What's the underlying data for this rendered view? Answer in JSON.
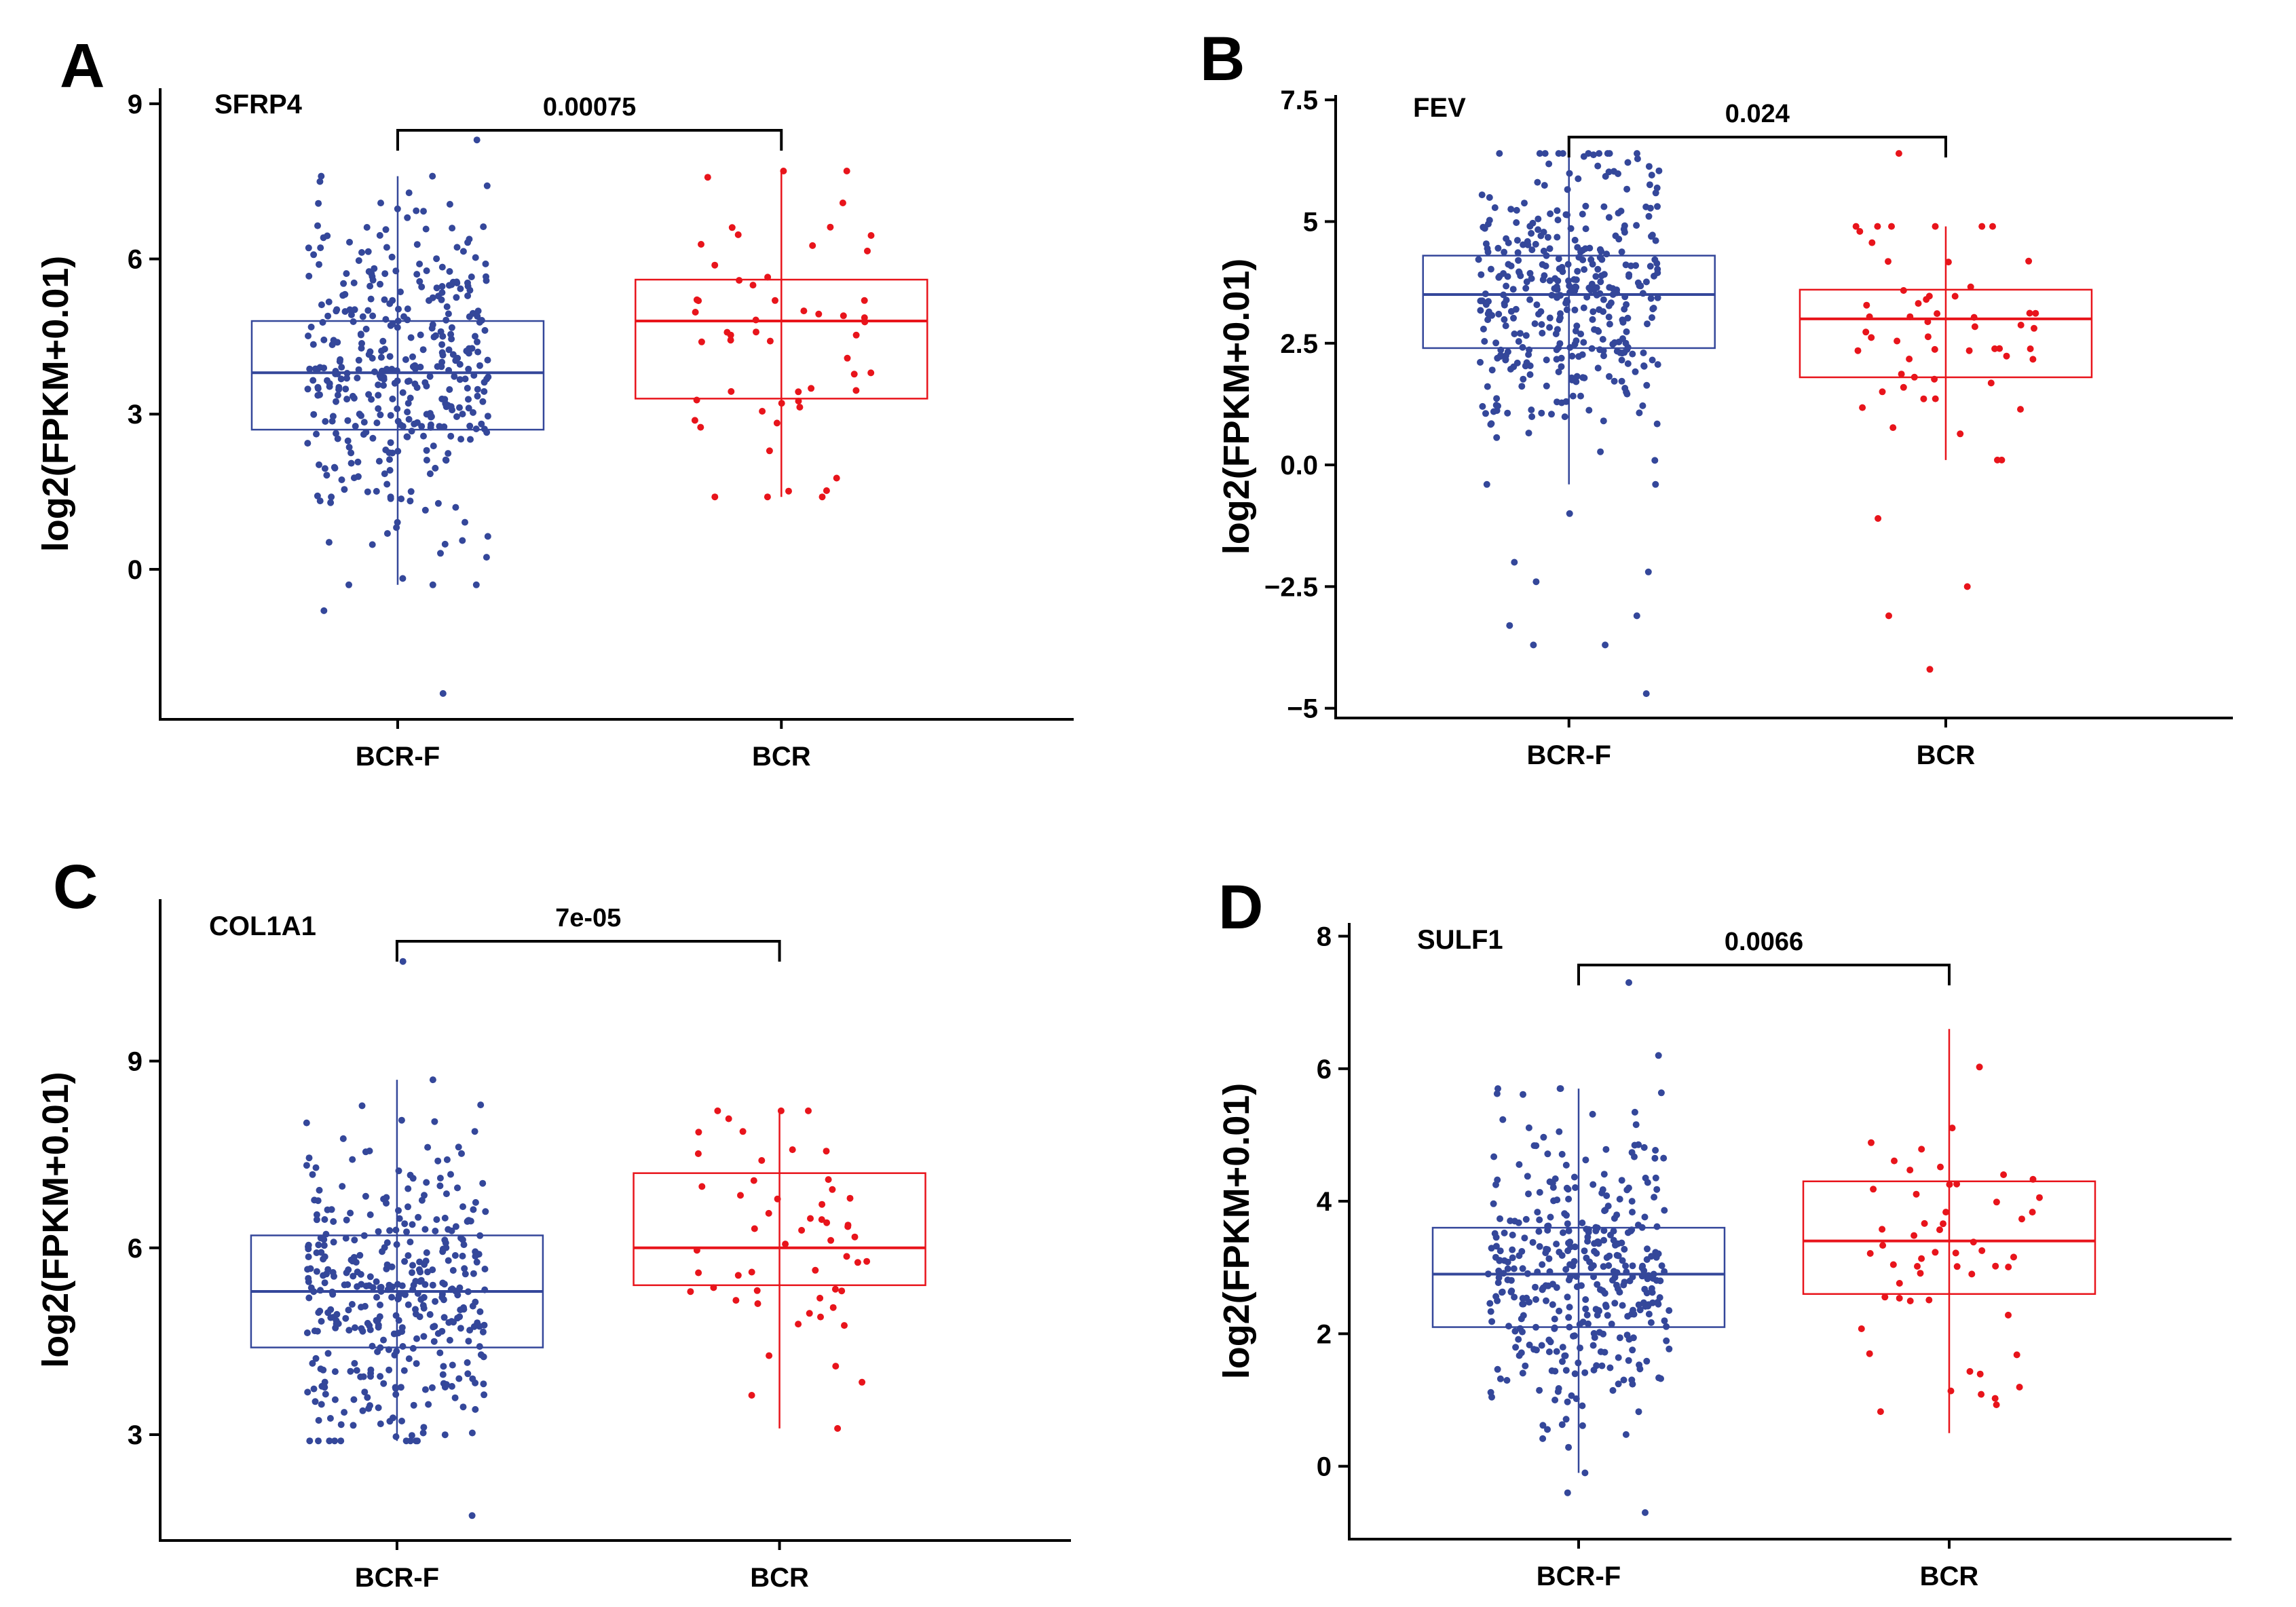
{
  "colors": {
    "bcr_f": "#34479a",
    "bcr": "#e8141b"
  },
  "chart_data": [
    {
      "panel": "A",
      "type": "box",
      "title": "SFRP4",
      "xlabel": "",
      "ylabel": "log2(FPKM+0.01)",
      "categories": [
        "BCR-F",
        "BCR"
      ],
      "ylim": [
        -2.9,
        9.3
      ],
      "yticks": [
        0,
        3,
        6,
        9
      ],
      "ytick_labels": [
        "0",
        "3",
        "6",
        "9"
      ],
      "pvalue": "0.00075",
      "series": [
        {
          "name": "BCR-F",
          "n": 380,
          "q1": 2.7,
          "median": 3.8,
          "q3": 4.8,
          "whisker_low": -0.3,
          "whisker_high": 7.6,
          "outliers": [
            -0.8,
            -2.4,
            8.3
          ]
        },
        {
          "name": "BCR",
          "n": 55,
          "q1": 3.3,
          "median": 4.8,
          "q3": 5.6,
          "whisker_low": 1.4,
          "whisker_high": 7.7,
          "outliers": []
        }
      ]
    },
    {
      "panel": "B",
      "type": "box",
      "title": "FEV",
      "xlabel": "",
      "ylabel": "log2(FPKM+0.01)",
      "categories": [
        "BCR-F",
        "BCR"
      ],
      "ylim": [
        -5.2,
        7.6
      ],
      "yticks": [
        -5,
        -2.5,
        0,
        2.5,
        5,
        7.5
      ],
      "ytick_labels": [
        "−5",
        "−2.5",
        "0.0",
        "2.5",
        "5",
        "7.5"
      ],
      "pvalue": "0.024",
      "series": [
        {
          "name": "BCR-F",
          "n": 380,
          "q1": 2.4,
          "median": 3.5,
          "q3": 4.3,
          "whisker_low": -0.4,
          "whisker_high": 6.4,
          "outliers": [
            -1.0,
            -2.0,
            -2.2,
            -2.4,
            -3.1,
            -3.3,
            -3.7,
            -3.7,
            -4.7
          ]
        },
        {
          "name": "BCR",
          "n": 55,
          "q1": 1.8,
          "median": 3.0,
          "q3": 3.6,
          "whisker_low": 0.1,
          "whisker_high": 4.9,
          "outliers": [
            -1.1,
            -2.5,
            -3.1,
            -4.2,
            6.4
          ]
        }
      ]
    },
    {
      "panel": "C",
      "type": "box",
      "title": "COL1A1",
      "xlabel": "",
      "ylabel": "log2(FPKM+0.01)",
      "categories": [
        "BCR-F",
        "BCR"
      ],
      "ylim": [
        1.3,
        11.6
      ],
      "yticks": [
        3,
        6,
        9
      ],
      "ytick_labels": [
        "3",
        "6",
        "9"
      ],
      "pvalue": "7e-05",
      "series": [
        {
          "name": "BCR-F",
          "n": 380,
          "q1": 4.4,
          "median": 5.3,
          "q3": 6.2,
          "whisker_low": 2.9,
          "whisker_high": 8.7,
          "outliers": [
            1.7,
            10.6
          ]
        },
        {
          "name": "BCR",
          "n": 55,
          "q1": 5.4,
          "median": 6.0,
          "q3": 7.2,
          "whisker_low": 3.1,
          "whisker_high": 8.2,
          "outliers": []
        }
      ]
    },
    {
      "panel": "D",
      "type": "box",
      "title": "SULF1",
      "xlabel": "",
      "ylabel": "log2(FPKM+0.01)",
      "categories": [
        "BCR-F",
        "BCR"
      ],
      "ylim": [
        -1.1,
        8.2
      ],
      "yticks": [
        0,
        2,
        4,
        6,
        8
      ],
      "ytick_labels": [
        "0",
        "2",
        "4",
        "6",
        "8"
      ],
      "pvalue": "0.0066",
      "series": [
        {
          "name": "BCR-F",
          "n": 380,
          "q1": 2.1,
          "median": 2.9,
          "q3": 3.6,
          "whisker_low": -0.1,
          "whisker_high": 5.7,
          "outliers": [
            -0.4,
            -0.7,
            6.2,
            7.3
          ]
        },
        {
          "name": "BCR",
          "n": 55,
          "q1": 2.6,
          "median": 3.4,
          "q3": 4.3,
          "whisker_low": 0.5,
          "whisker_high": 6.6,
          "outliers": []
        }
      ]
    }
  ]
}
